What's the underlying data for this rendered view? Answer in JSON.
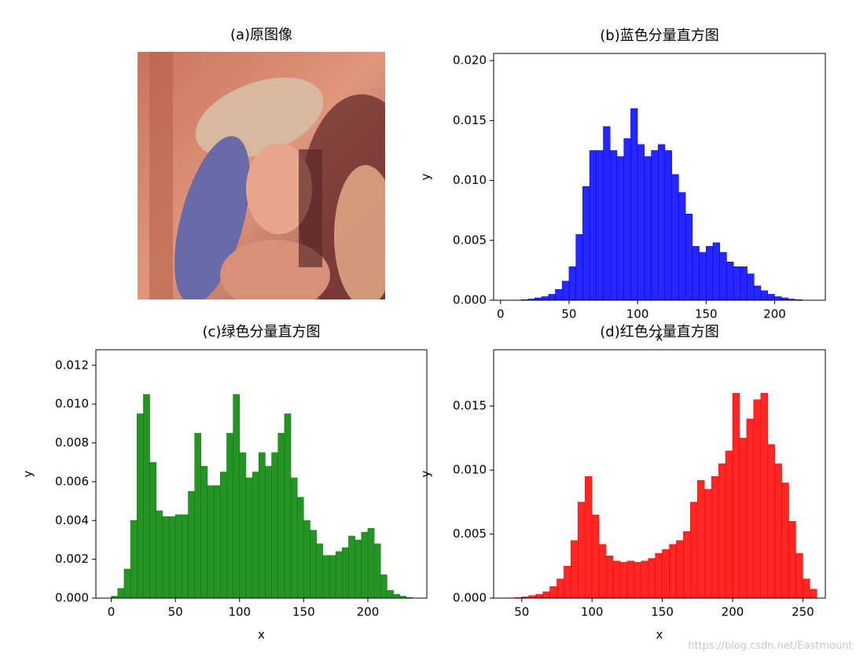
{
  "chart_data": [
    {
      "type": "image",
      "title": "(a)原图像"
    },
    {
      "type": "histogram",
      "title": "(b)蓝色分量直方图",
      "xlabel": "x",
      "ylabel": "y",
      "color": "#0000ff",
      "bins": [
        0,
        5,
        10,
        15,
        20,
        25,
        30,
        35,
        40,
        45,
        50,
        55,
        60,
        65,
        70,
        75,
        80,
        85,
        90,
        95,
        100,
        105,
        110,
        115,
        120,
        125,
        130,
        135,
        140,
        145,
        150,
        155,
        160,
        165,
        170,
        175,
        180,
        185,
        190,
        195,
        200,
        205,
        210,
        215,
        220,
        225
      ],
      "counts": [
        0,
        0,
        0,
        5e-05,
        0.0001,
        0.0002,
        0.0003,
        0.0005,
        0.0009,
        0.0016,
        0.0028,
        0.0055,
        0.0095,
        0.0125,
        0.0125,
        0.0145,
        0.0125,
        0.012,
        0.0135,
        0.016,
        0.013,
        0.012,
        0.0125,
        0.013,
        0.0125,
        0.0105,
        0.009,
        0.0072,
        0.0045,
        0.004,
        0.0045,
        0.0048,
        0.004,
        0.0032,
        0.0028,
        0.0028,
        0.0022,
        0.0012,
        0.0008,
        0.0005,
        0.0003,
        0.0002,
        0.0001,
        5e-05,
        0
      ],
      "xlim": [
        -5,
        237
      ],
      "ylim": [
        0,
        0.0206
      ],
      "xticks": [
        0,
        50,
        100,
        150,
        200
      ],
      "yticks": [
        {
          "value": 0,
          "label": "0.000"
        },
        {
          "value": 0.005,
          "label": "0.005"
        },
        {
          "value": 0.01,
          "label": "0.010"
        },
        {
          "value": 0.015,
          "label": "0.015"
        },
        {
          "value": 0.02,
          "label": "0.020"
        }
      ]
    },
    {
      "type": "histogram",
      "title": "(c)绿色分量直方图",
      "xlabel": "x",
      "ylabel": "y",
      "color": "#008000",
      "bins": [
        0,
        5,
        10,
        15,
        20,
        25,
        30,
        35,
        40,
        45,
        50,
        55,
        60,
        65,
        70,
        75,
        80,
        85,
        90,
        95,
        100,
        105,
        110,
        115,
        120,
        125,
        130,
        135,
        140,
        145,
        150,
        155,
        160,
        165,
        170,
        175,
        180,
        185,
        190,
        195,
        200,
        205,
        210,
        215,
        220,
        225,
        230,
        235
      ],
      "counts": [
        0.0001,
        0.0005,
        0.0015,
        0.004,
        0.0095,
        0.0105,
        0.007,
        0.0045,
        0.0042,
        0.0042,
        0.0043,
        0.0043,
        0.0055,
        0.0085,
        0.0068,
        0.0058,
        0.0058,
        0.0065,
        0.0085,
        0.0105,
        0.0075,
        0.0062,
        0.0065,
        0.0075,
        0.0068,
        0.0075,
        0.0085,
        0.0095,
        0.0062,
        0.0052,
        0.004,
        0.0035,
        0.0028,
        0.0022,
        0.0022,
        0.0024,
        0.0026,
        0.0032,
        0.003,
        0.0034,
        0.0036,
        0.0028,
        0.0012,
        0.0004,
        0.0002,
        0.0001,
        3e-05
      ],
      "xlim": [
        -12,
        246
      ],
      "ylim": [
        0,
        0.0128
      ],
      "xticks": [
        0,
        50,
        100,
        150,
        200
      ],
      "yticks": [
        {
          "value": 0,
          "label": "0.000"
        },
        {
          "value": 0.002,
          "label": "0.002"
        },
        {
          "value": 0.004,
          "label": "0.004"
        },
        {
          "value": 0.006,
          "label": "0.006"
        },
        {
          "value": 0.008,
          "label": "0.008"
        },
        {
          "value": 0.01,
          "label": "0.010"
        },
        {
          "value": 0.012,
          "label": "0.012"
        }
      ]
    },
    {
      "type": "histogram",
      "title": "(d)红色分量直方图",
      "xlabel": "x",
      "ylabel": "y",
      "color": "#ff0000",
      "bins": [
        40,
        45,
        50,
        55,
        60,
        65,
        70,
        75,
        80,
        85,
        90,
        95,
        100,
        105,
        110,
        115,
        120,
        125,
        130,
        135,
        140,
        145,
        150,
        155,
        160,
        165,
        170,
        175,
        180,
        185,
        190,
        195,
        200,
        205,
        210,
        215,
        220,
        225,
        230,
        235,
        240,
        245,
        250,
        255,
        260
      ],
      "counts": [
        2e-05,
        5e-05,
        0.0001,
        0.0002,
        0.0003,
        0.0005,
        0.0009,
        0.0015,
        0.0025,
        0.0045,
        0.0075,
        0.0095,
        0.0065,
        0.0042,
        0.0033,
        0.0029,
        0.0028,
        0.0029,
        0.0028,
        0.0029,
        0.0031,
        0.0035,
        0.0038,
        0.0042,
        0.0045,
        0.0052,
        0.0075,
        0.0092,
        0.0085,
        0.0095,
        0.0105,
        0.0115,
        0.016,
        0.0125,
        0.014,
        0.0155,
        0.016,
        0.012,
        0.0105,
        0.009,
        0.006,
        0.0035,
        0.0015,
        0.0007
      ],
      "xlim": [
        30,
        266
      ],
      "ylim": [
        0,
        0.0194
      ],
      "xticks": [
        50,
        100,
        150,
        200,
        250
      ],
      "yticks": [
        {
          "value": 0,
          "label": "0.000"
        },
        {
          "value": 0.005,
          "label": "0.005"
        },
        {
          "value": 0.01,
          "label": "0.010"
        },
        {
          "value": 0.015,
          "label": "0.015"
        }
      ]
    }
  ],
  "watermark": "https://blog.csdn.net/Eastmount"
}
